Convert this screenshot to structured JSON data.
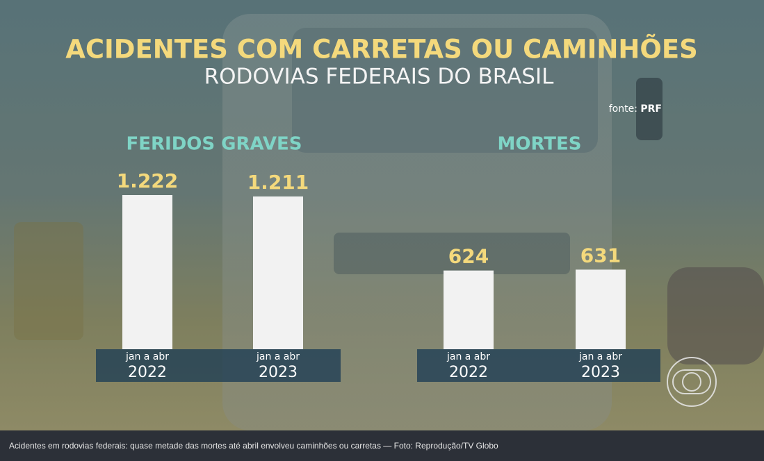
{
  "title": "ACIDENTES COM CARRETAS OU CAMINHÕES",
  "subtitle": "RODOVIAS FEDERAIS DO BRASIL",
  "source": {
    "label": "fonte:",
    "name": "PRF"
  },
  "caption": "Acidentes em rodovias federais: quase metade das mortes até abril envolveu caminhões ou carretas — Foto: Reprodução/TV Globo",
  "chart_data": [
    {
      "type": "bar",
      "title": "FERIDOS GRAVES",
      "period": "jan a abr",
      "categories": [
        "2022",
        "2023"
      ],
      "values": [
        1222,
        1211
      ],
      "value_labels": [
        "1.222",
        "1.211"
      ],
      "color": "#f2f2f2"
    },
    {
      "type": "bar",
      "title": "MORTES",
      "period": "jan a abr",
      "categories": [
        "2022",
        "2023"
      ],
      "values": [
        624,
        631
      ],
      "color": "#f2f2f2"
    }
  ]
}
